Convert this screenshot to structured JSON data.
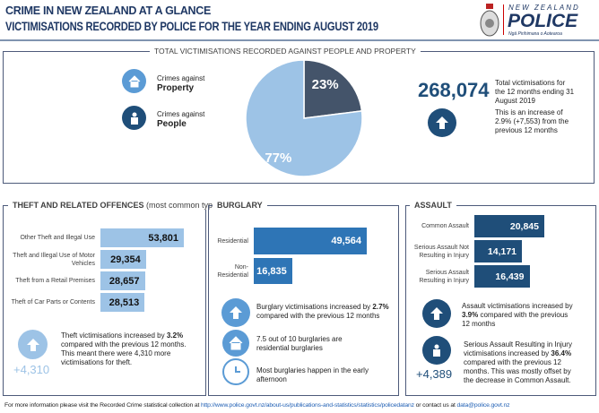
{
  "header": {
    "subtitle": "CRIME IN NEW ZEALAND AT A GLANCE",
    "title": "VICTIMISATIONS RECORDED BY POLICE FOR THE YEAR ENDING AUGUST 2019"
  },
  "logo": {
    "line1": "NEW ZEALAND",
    "line2": "POLICE",
    "line3": "Ngā Pirihimana o Aotearoa"
  },
  "total": {
    "title": "TOTAL VICTIMISATIONS RECORDED AGAINST PEOPLE AND PROPERTY",
    "legend": [
      {
        "pre": "Crimes against",
        "label": "Property",
        "icon": "house-icon",
        "color": "#5b9bd5"
      },
      {
        "pre": "Crimes against",
        "label": "People",
        "icon": "person-icon",
        "color": "#1f4e79"
      }
    ],
    "pie": [
      {
        "label": "Property",
        "pct": 77,
        "text": "77%",
        "color": "#9dc3e6"
      },
      {
        "label": "People",
        "pct": 23,
        "text": "23%",
        "color": "#44546a"
      }
    ],
    "value": "268,074",
    "desc": "Total victimisations for the 12 months ending 31 August 2019",
    "increase": "This is an increase of 2.9% (+7,553) from the previous 12 months"
  },
  "theft": {
    "title": "THEFT AND RELATED OFFENCES",
    "title_note": "(most common types)",
    "bars": [
      {
        "label": "Other Theft and Illegal Use",
        "value": 53801,
        "text": "53,801"
      },
      {
        "label": "Theft and Illegal Use of Motor Vehicles",
        "value": 29354,
        "text": "29,354"
      },
      {
        "label": "Theft from a Retail Premises",
        "value": 28657,
        "text": "28,657"
      },
      {
        "label": "Theft of Car Parts or Contents",
        "value": 28513,
        "text": "28,513"
      }
    ],
    "change": "+4,310",
    "note_a": "Theft victimisations increased by ",
    "note_b": "3.2%",
    "note_c": " compared with the previous 12 months. This meant there were 4,310 more victimisations for theft."
  },
  "burglary": {
    "title": "BURGLARY",
    "bars": [
      {
        "label": "Residential",
        "value": 49564,
        "text": "49,564"
      },
      {
        "label": "Non-Residential",
        "value": 16835,
        "text": "16,835"
      }
    ],
    "note1_a": "Burglary victimisations increased by ",
    "note1_b": "2.7%",
    "note1_c": " compared with the previous 12 months",
    "note2": "7.5 out of 10 burglaries are residential burglaries",
    "note3": "Most burglaries happen in the early afternoon"
  },
  "assault": {
    "title": "ASSAULT",
    "bars": [
      {
        "label": "Common Assault",
        "value": 20845,
        "text": "20,845"
      },
      {
        "label": "Serious Assault Not Resulting in Injury",
        "value": 14171,
        "text": "14,171"
      },
      {
        "label": "Serious Assault Resulting in Injury",
        "value": 16439,
        "text": "16,439"
      }
    ],
    "note1_a": "Assault victimisations increased by ",
    "note1_b": "3.9%",
    "note1_c": " compared with the previous 12 months",
    "note2_a": "Serious Assault Resulting in Injury victimisations increased by ",
    "note2_b": "36.4%",
    "note2_c": " compared with the previous 12 months. This was mostly offset by the decrease in Common Assault.",
    "change": "+4,389"
  },
  "footer": {
    "pre": "For more information please visit the Recorded Crime statistical collection at ",
    "link": "http://www.police.govt.nz/about-us/publications-and-statistics/statistics/policedatanz",
    "mid": " or contact us at ",
    "email": "data@police.govt.nz"
  }
}
